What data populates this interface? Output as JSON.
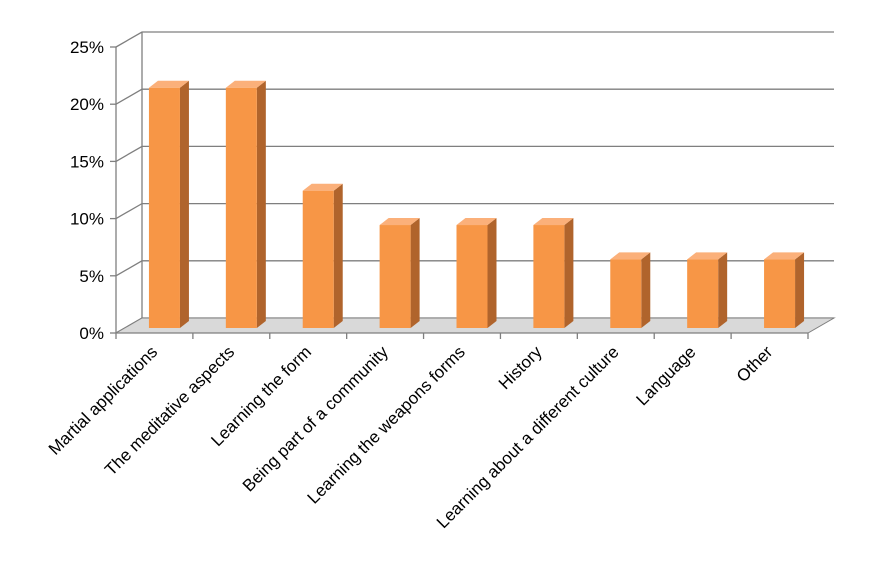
{
  "chart_data": {
    "type": "bar",
    "style": "3d-column",
    "categories": [
      "Martial applications",
      "The meditative aspects",
      "Learning the form",
      "Being part of a community",
      "Learning the weapons forms",
      "History",
      "Learning about a different culture",
      "Language",
      "Other"
    ],
    "values": [
      21,
      21,
      12,
      9,
      9,
      9,
      6,
      6,
      6
    ],
    "value_unit": "%",
    "y_ticks": [
      "0%",
      "5%",
      "10%",
      "15%",
      "20%",
      "25%"
    ],
    "ylim": [
      0,
      25
    ],
    "grid": true,
    "legend": "none",
    "title": "",
    "xlabel": "",
    "ylabel": "",
    "colors": {
      "bar_front": "#f79646",
      "bar_top": "#fbb07a",
      "bar_side": "#b0642c",
      "grid": "#7f7f7f",
      "floor": "#d9d9d9"
    }
  }
}
